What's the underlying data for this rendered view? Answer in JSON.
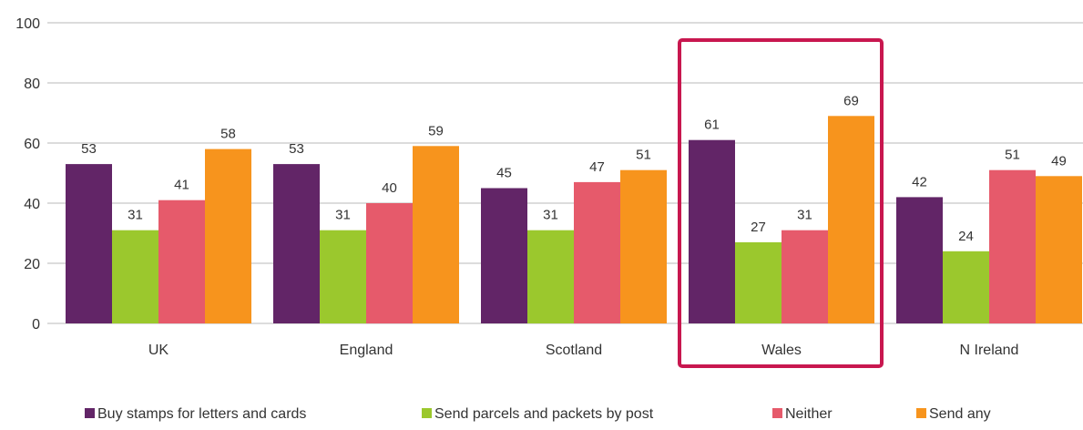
{
  "chart_data": {
    "type": "bar",
    "categories": [
      "UK",
      "England",
      "Scotland",
      "Wales",
      "N Ireland"
    ],
    "series": [
      {
        "name": "Buy stamps for letters and cards",
        "values": [
          53,
          53,
          45,
          61,
          42
        ],
        "color": "#622567"
      },
      {
        "name": "Send parcels and packets by post",
        "values": [
          31,
          31,
          31,
          27,
          24
        ],
        "color": "#9bc82d"
      },
      {
        "name": "Neither",
        "values": [
          41,
          40,
          47,
          31,
          51
        ],
        "color": "#e65a6b"
      },
      {
        "name": "Send any",
        "values": [
          58,
          59,
          51,
          69,
          49
        ],
        "color": "#f7941d"
      }
    ],
    "ylim": [
      0,
      100
    ],
    "yticks": [
      0,
      20,
      40,
      60,
      80,
      100
    ],
    "grid": true,
    "legend_position": "bottom",
    "highlight": {
      "category": "Wales",
      "color": "#c8174f"
    },
    "gridline_color": "#c8c8c8"
  }
}
